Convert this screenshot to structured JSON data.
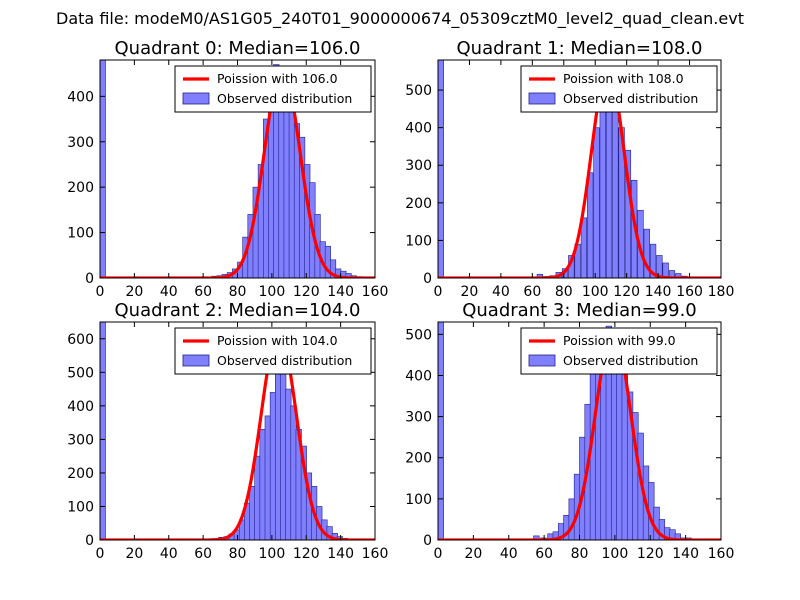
{
  "figure": {
    "suptitle": "Data file: modeM0/AS1G05_240T01_9000000674_05309cztM0_level2_quad_clean.evt"
  },
  "colors": {
    "hist_fill": "#8080ff",
    "hist_edge": "#20208a",
    "poisson_line": "#ff0000",
    "axes_edge": "#000000",
    "background": "#ffffff"
  },
  "chart_data": [
    {
      "type": "bar",
      "title": "Quadrant 0: Median=106.0",
      "median": 106.0,
      "xlim": [
        0,
        160
      ],
      "ylim": [
        0,
        480
      ],
      "xticks": [
        0,
        20,
        40,
        60,
        80,
        100,
        120,
        140,
        160
      ],
      "yticks": [
        0,
        100,
        200,
        300,
        400
      ],
      "bin_width": 3.2,
      "bins": [
        [
          0,
          480
        ],
        [
          65,
          4
        ],
        [
          68,
          5
        ],
        [
          71,
          8
        ],
        [
          74,
          12
        ],
        [
          77,
          20
        ],
        [
          80,
          35
        ],
        [
          83,
          90
        ],
        [
          86,
          140
        ],
        [
          89,
          200
        ],
        [
          92,
          250
        ],
        [
          95,
          350
        ],
        [
          98,
          380
        ],
        [
          101,
          470
        ],
        [
          104,
          460
        ],
        [
          107,
          460
        ],
        [
          110,
          400
        ],
        [
          113,
          340
        ],
        [
          116,
          310
        ],
        [
          119,
          250
        ],
        [
          122,
          210
        ],
        [
          125,
          140
        ],
        [
          128,
          80
        ],
        [
          131,
          70
        ],
        [
          134,
          40
        ],
        [
          137,
          20
        ],
        [
          140,
          15
        ],
        [
          143,
          10
        ],
        [
          146,
          5
        ],
        [
          149,
          3
        ]
      ],
      "poisson_mean": 106.0,
      "poisson_peak": 462,
      "legend": [
        "Poission with 106.0",
        "Observed distribution"
      ]
    },
    {
      "type": "bar",
      "title": "Quadrant 1: Median=108.0",
      "median": 108.0,
      "xlim": [
        0,
        180
      ],
      "ylim": [
        0,
        580
      ],
      "xticks": [
        0,
        20,
        40,
        60,
        80,
        100,
        120,
        140,
        160,
        180
      ],
      "yticks": [
        0,
        100,
        200,
        300,
        400,
        500
      ],
      "bin_width": 3.6,
      "bins": [
        [
          0,
          580
        ],
        [
          63,
          10
        ],
        [
          67,
          4
        ],
        [
          71,
          6
        ],
        [
          75,
          15
        ],
        [
          79,
          25
        ],
        [
          83,
          60
        ],
        [
          87,
          90
        ],
        [
          91,
          160
        ],
        [
          95,
          280
        ],
        [
          99,
          400
        ],
        [
          103,
          500
        ],
        [
          107,
          550
        ],
        [
          111,
          460
        ],
        [
          115,
          400
        ],
        [
          119,
          340
        ],
        [
          123,
          260
        ],
        [
          127,
          180
        ],
        [
          131,
          130
        ],
        [
          135,
          90
        ],
        [
          139,
          60
        ],
        [
          143,
          40
        ],
        [
          147,
          20
        ],
        [
          151,
          12
        ],
        [
          155,
          5
        ]
      ],
      "poisson_mean": 108.0,
      "poisson_peak": 555,
      "legend": [
        "Poission with 108.0",
        "Observed distribution"
      ]
    },
    {
      "type": "bar",
      "title": "Quadrant 2: Median=104.0",
      "median": 104.0,
      "xlim": [
        0,
        160
      ],
      "ylim": [
        0,
        650
      ],
      "xticks": [
        0,
        20,
        40,
        60,
        80,
        100,
        120,
        140,
        160
      ],
      "yticks": [
        0,
        100,
        200,
        300,
        400,
        500,
        600
      ],
      "bin_width": 3.2,
      "bins": [
        [
          0,
          650
        ],
        [
          65,
          4
        ],
        [
          69,
          8
        ],
        [
          72,
          10
        ],
        [
          75,
          18
        ],
        [
          78,
          30
        ],
        [
          81,
          60
        ],
        [
          84,
          110
        ],
        [
          87,
          160
        ],
        [
          90,
          250
        ],
        [
          93,
          330
        ],
        [
          96,
          370
        ],
        [
          99,
          440
        ],
        [
          102,
          610
        ],
        [
          105,
          540
        ],
        [
          108,
          450
        ],
        [
          111,
          400
        ],
        [
          114,
          330
        ],
        [
          117,
          280
        ],
        [
          120,
          200
        ],
        [
          123,
          160
        ],
        [
          126,
          100
        ],
        [
          129,
          60
        ],
        [
          132,
          40
        ],
        [
          135,
          20
        ],
        [
          138,
          10
        ],
        [
          141,
          5
        ]
      ],
      "poisson_mean": 104.0,
      "poisson_peak": 620,
      "legend": [
        "Poission with 104.0",
        "Observed distribution"
      ]
    },
    {
      "type": "bar",
      "title": "Quadrant 3: Median=99.0",
      "median": 99.0,
      "xlim": [
        0,
        160
      ],
      "ylim": [
        0,
        530
      ],
      "xticks": [
        0,
        20,
        40,
        60,
        80,
        100,
        120,
        140,
        160
      ],
      "yticks": [
        0,
        100,
        200,
        300,
        400,
        500
      ],
      "bin_width": 3.2,
      "bins": [
        [
          0,
          530
        ],
        [
          54,
          10
        ],
        [
          58,
          5
        ],
        [
          62,
          15
        ],
        [
          65,
          20
        ],
        [
          68,
          40
        ],
        [
          71,
          60
        ],
        [
          74,
          100
        ],
        [
          77,
          160
        ],
        [
          80,
          250
        ],
        [
          83,
          330
        ],
        [
          86,
          410
        ],
        [
          89,
          420
        ],
        [
          92,
          470
        ],
        [
          95,
          520
        ],
        [
          98,
          500
        ],
        [
          101,
          470
        ],
        [
          104,
          430
        ],
        [
          107,
          360
        ],
        [
          110,
          310
        ],
        [
          113,
          260
        ],
        [
          116,
          180
        ],
        [
          119,
          140
        ],
        [
          122,
          80
        ],
        [
          125,
          50
        ],
        [
          128,
          30
        ],
        [
          131,
          25
        ],
        [
          134,
          15
        ],
        [
          137,
          5
        ],
        [
          140,
          5
        ]
      ],
      "poisson_mean": 99.0,
      "poisson_peak": 510,
      "legend": [
        "Poission with 99.0",
        "Observed distribution"
      ]
    }
  ]
}
